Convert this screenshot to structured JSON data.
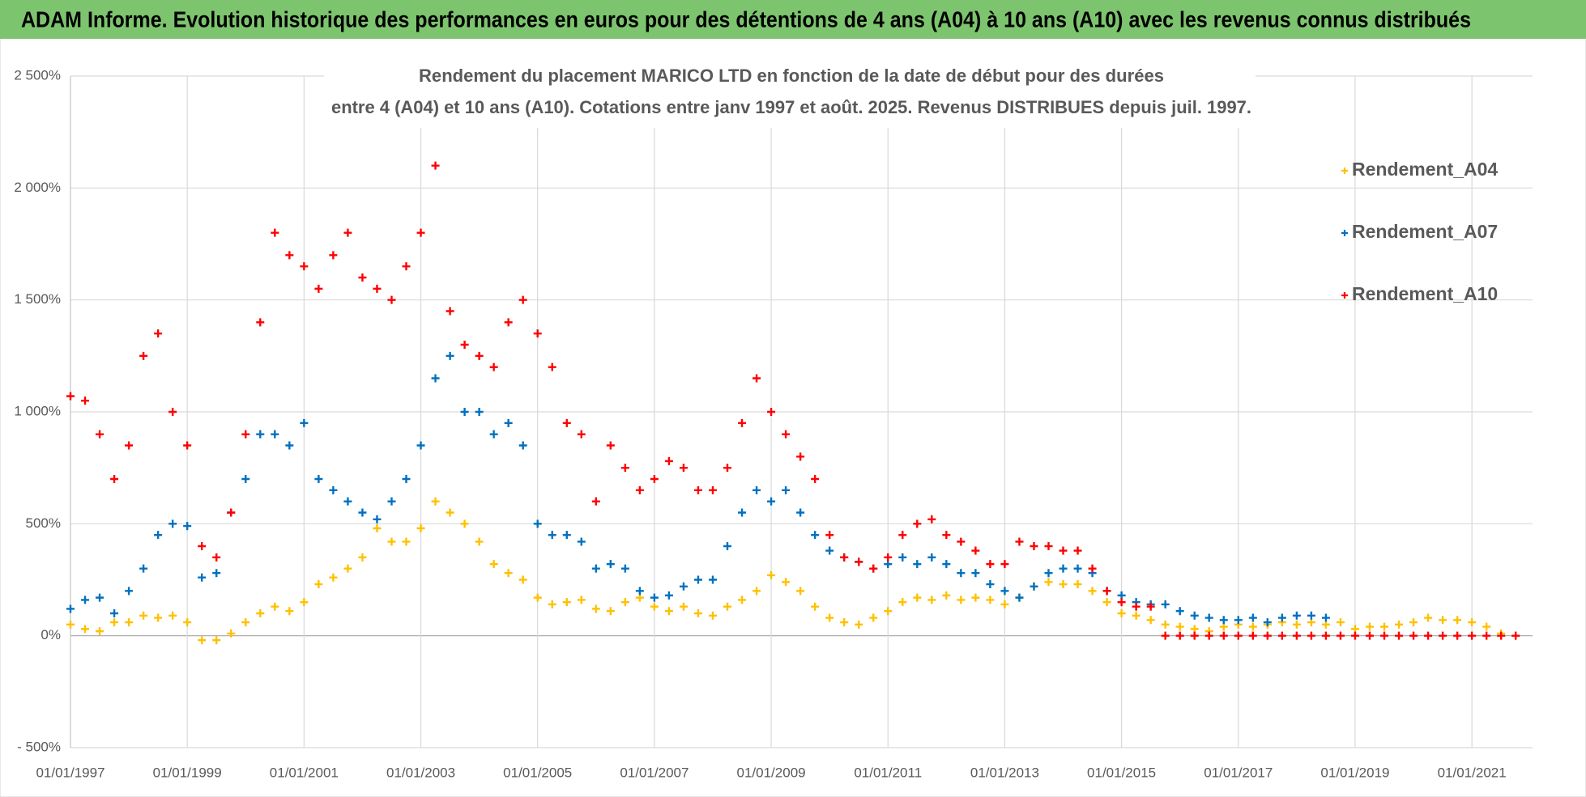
{
  "header": {
    "title": "ADAM Informe. Evolution historique des performances en euros pour des détentions de 4 ans (A04) à 10 ans (A10) avec les revenus connus distribués"
  },
  "chart_data": {
    "type": "scatter",
    "title": [
      "Rendement du placement MARICO LTD en fonction de la date de début pour des durées",
      "entre 4 (A04) et 10 ans (A10).  Cotations entre janv 1997 et août. 2025. Revenus DISTRIBUES depuis juil. 1997."
    ],
    "x": [
      "01/01/1997",
      "01/04/1997",
      "01/07/1997",
      "01/10/1997",
      "01/01/1998",
      "01/04/1998",
      "01/07/1998",
      "01/10/1998",
      "01/01/1999",
      "01/04/1999",
      "01/07/1999",
      "01/10/1999",
      "01/01/2000",
      "01/04/2000",
      "01/07/2000",
      "01/10/2000",
      "01/01/2001",
      "01/04/2001",
      "01/07/2001",
      "01/10/2001",
      "01/01/2002",
      "01/04/2002",
      "01/07/2002",
      "01/10/2002",
      "01/01/2003",
      "01/04/2003",
      "01/07/2003",
      "01/10/2003",
      "01/01/2004",
      "01/04/2004",
      "01/07/2004",
      "01/10/2004",
      "01/01/2005",
      "01/04/2005",
      "01/07/2005",
      "01/10/2005",
      "01/01/2006",
      "01/04/2006",
      "01/07/2006",
      "01/10/2006",
      "01/01/2007",
      "01/04/2007",
      "01/07/2007",
      "01/10/2007",
      "01/01/2008",
      "01/04/2008",
      "01/07/2008",
      "01/10/2008",
      "01/01/2009",
      "01/04/2009",
      "01/07/2009",
      "01/10/2009",
      "01/01/2010",
      "01/04/2010",
      "01/07/2010",
      "01/10/2010",
      "01/01/2011",
      "01/04/2011",
      "01/07/2011",
      "01/10/2011",
      "01/01/2012",
      "01/04/2012",
      "01/07/2012",
      "01/10/2012",
      "01/01/2013",
      "01/04/2013",
      "01/07/2013",
      "01/10/2013",
      "01/01/2014",
      "01/04/2014",
      "01/07/2014",
      "01/10/2014",
      "01/01/2015",
      "01/04/2015",
      "01/07/2015",
      "01/10/2015",
      "01/01/2016",
      "01/04/2016",
      "01/07/2016",
      "01/10/2016",
      "01/01/2017",
      "01/04/2017",
      "01/07/2017",
      "01/10/2017",
      "01/01/2018",
      "01/04/2018",
      "01/07/2018",
      "01/10/2018",
      "01/01/2019",
      "01/04/2019",
      "01/07/2019",
      "01/10/2019",
      "01/01/2020",
      "01/04/2020",
      "01/07/2020",
      "01/10/2020",
      "01/01/2021",
      "01/04/2021",
      "01/07/2021",
      "01/10/2021"
    ],
    "series": [
      {
        "name": "Rendement_A04",
        "color": "#ffc000",
        "values": [
          50,
          30,
          20,
          60,
          60,
          90,
          80,
          90,
          60,
          -20,
          -20,
          10,
          60,
          100,
          130,
          110,
          150,
          230,
          260,
          300,
          350,
          480,
          420,
          420,
          480,
          600,
          550,
          500,
          420,
          320,
          280,
          250,
          170,
          140,
          150,
          160,
          120,
          110,
          150,
          170,
          130,
          110,
          130,
          100,
          90,
          130,
          160,
          200,
          270,
          240,
          200,
          130,
          80,
          60,
          50,
          80,
          110,
          150,
          170,
          160,
          180,
          160,
          170,
          160,
          140,
          170,
          220,
          240,
          230,
          230,
          200,
          150,
          100,
          90,
          70,
          50,
          40,
          30,
          20,
          40,
          50,
          40,
          50,
          60,
          50,
          60,
          50,
          60,
          30,
          40,
          40,
          50,
          60,
          80,
          70,
          70,
          60,
          40,
          10,
          0
        ]
      },
      {
        "name": "Rendement_A07",
        "color": "#0070c0",
        "values": [
          120,
          160,
          170,
          100,
          200,
          300,
          450,
          500,
          490,
          260,
          280,
          550,
          700,
          900,
          900,
          850,
          950,
          700,
          650,
          600,
          550,
          520,
          600,
          700,
          850,
          1150,
          1250,
          1000,
          1000,
          900,
          950,
          850,
          500,
          450,
          450,
          420,
          300,
          320,
          300,
          200,
          170,
          180,
          220,
          250,
          250,
          400,
          550,
          650,
          600,
          650,
          550,
          450,
          380,
          350,
          330,
          300,
          320,
          350,
          320,
          350,
          320,
          280,
          280,
          230,
          200,
          170,
          220,
          280,
          300,
          300,
          280,
          200,
          180,
          150,
          140,
          140,
          110,
          90,
          80,
          70,
          70,
          80,
          60,
          80,
          90,
          90,
          80,
          null,
          null,
          null,
          null,
          null,
          null,
          null,
          null,
          null,
          null,
          null,
          null,
          null
        ]
      },
      {
        "name": "Rendement_A10",
        "color": "#ff0000",
        "values": [
          1070,
          1050,
          900,
          700,
          850,
          1250,
          1350,
          1000,
          850,
          400,
          350,
          550,
          900,
          1400,
          1800,
          1700,
          1650,
          1550,
          1700,
          1800,
          1600,
          1550,
          1500,
          1650,
          1800,
          2100,
          1450,
          1300,
          1250,
          1200,
          1400,
          1500,
          1350,
          1200,
          950,
          900,
          600,
          850,
          750,
          650,
          700,
          780,
          750,
          650,
          650,
          750,
          950,
          1150,
          1000,
          900,
          800,
          700,
          450,
          350,
          330,
          300,
          350,
          450,
          500,
          520,
          450,
          420,
          380,
          320,
          320,
          420,
          400,
          400,
          380,
          380,
          300,
          200,
          150,
          130,
          130,
          0,
          0,
          0,
          0,
          0,
          0,
          0,
          0,
          0,
          0,
          0,
          0,
          0,
          0,
          0,
          0,
          0,
          0,
          0,
          0,
          0,
          0,
          0,
          0,
          0
        ]
      }
    ],
    "xlim": [
      "01/01/1997",
      "15/01/2022"
    ],
    "xticks": [
      "01/01/1997",
      "01/01/1999",
      "01/01/2001",
      "01/01/2003",
      "01/01/2005",
      "01/01/2007",
      "01/01/2009",
      "01/01/2011",
      "01/01/2013",
      "01/01/2015",
      "01/01/2017",
      "01/01/2019",
      "01/01/2021"
    ],
    "ylim": [
      -500,
      2500
    ],
    "yticks": [
      {
        "value": 2500,
        "label": "2 500%"
      },
      {
        "value": 2000,
        "label": "2 000%"
      },
      {
        "value": 1500,
        "label": "1 500%"
      },
      {
        "value": 1000,
        "label": "1 000%"
      },
      {
        "value": 500,
        "label": "500%"
      },
      {
        "value": 0,
        "label": "0%"
      },
      {
        "value": -500,
        "label": "- 500%"
      }
    ],
    "grid": true,
    "legend": "right"
  }
}
